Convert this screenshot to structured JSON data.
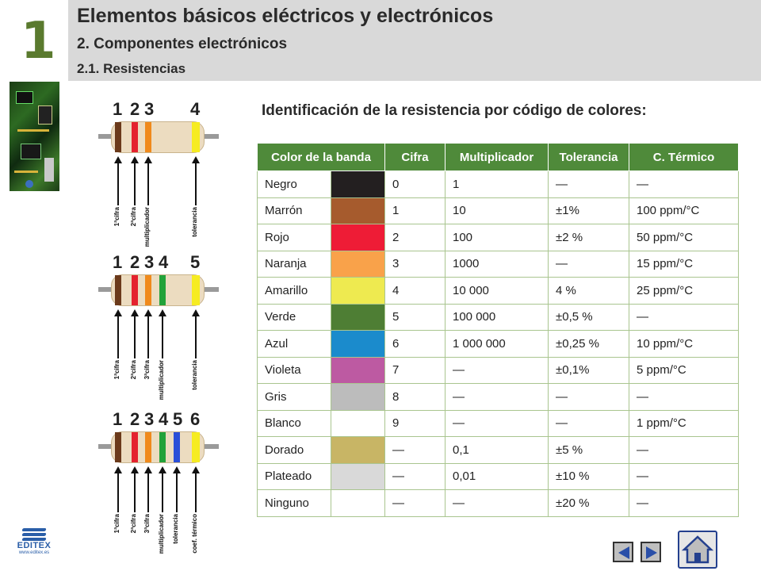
{
  "chapter_number": "1",
  "header": {
    "title": "Elementos básicos eléctricos y electrónicos",
    "section": "2. Componentes electrónicos",
    "subsection": "2.1. Resistencias"
  },
  "table_heading": "Identificación de la resistencia por código de colores:",
  "resistor_figures": [
    {
      "numbers": [
        "1",
        "2",
        "3",
        "4"
      ],
      "labels": [
        "1ªcifra",
        "2ªcifra",
        "multiplicador",
        "tolerancia"
      ]
    },
    {
      "numbers": [
        "1",
        "2",
        "3",
        "4",
        "5"
      ],
      "labels": [
        "1ªcifra",
        "2ªcifra",
        "3ªcifra",
        "multiplicador",
        "tolerancia"
      ]
    },
    {
      "numbers": [
        "1",
        "2",
        "3",
        "4",
        "5",
        "6"
      ],
      "labels": [
        "1ªcifra",
        "2ªcifra",
        "3ªcifra",
        "multiplicador",
        "tolerancia",
        "coef. térmico"
      ]
    }
  ],
  "table": {
    "headers": [
      "Color de la banda",
      "Cifra",
      "Multiplicador",
      "Tolerancia",
      "C. Térmico"
    ],
    "rows": [
      {
        "name": "Negro",
        "color": "#231f20",
        "digit": "0",
        "mult": "1",
        "tol": "—",
        "temp": "—"
      },
      {
        "name": "Marrón",
        "color": "#a65b2d",
        "digit": "1",
        "mult": "10",
        "tol": "±1%",
        "temp": "100 ppm/°C"
      },
      {
        "name": "Rojo",
        "color": "#ee1c36",
        "digit": "2",
        "mult": "100",
        "tol": "±2 %",
        "temp": "50 ppm/°C"
      },
      {
        "name": "Naranja",
        "color": "#f9a24a",
        "digit": "3",
        "mult": "1000",
        "tol": "—",
        "temp": "15 ppm/°C"
      },
      {
        "name": "Amarillo",
        "color": "#eeea50",
        "digit": "4",
        "mult": "10 000",
        "tol": "4 %",
        "temp": "25 ppm/°C"
      },
      {
        "name": "Verde",
        "color": "#4e7e34",
        "digit": "5",
        "mult": "100 000",
        "tol": "±0,5 %",
        "temp": "—"
      },
      {
        "name": "Azul",
        "color": "#1b8bcc",
        "digit": "6",
        "mult": "1 000 000",
        "tol": "±0,25 %",
        "temp": "10 ppm/°C"
      },
      {
        "name": "Violeta",
        "color": "#bd5aa2",
        "digit": "7",
        "mult": "—",
        "tol": "±0,1%",
        "temp": "5 ppm/°C"
      },
      {
        "name": "Gris",
        "color": "#bcbcbc",
        "digit": "8",
        "mult": "—",
        "tol": "—",
        "temp": "—"
      },
      {
        "name": "Blanco",
        "color": "#ffffff",
        "digit": "9",
        "mult": "—",
        "tol": "—",
        "temp": "1 ppm/°C"
      },
      {
        "name": "Dorado",
        "color": "#c8b565",
        "digit": "—",
        "mult": "0,1",
        "tol": "±5 %",
        "temp": "—"
      },
      {
        "name": "Plateado",
        "color": "#d9d9d9",
        "digit": "—",
        "mult": "0,01",
        "tol": "±10 %",
        "temp": "—"
      },
      {
        "name": "Ninguno",
        "color": "#ffffff",
        "digit": "—",
        "mult": "—",
        "tol": "±20 %",
        "temp": "—"
      }
    ]
  },
  "logo": {
    "name": "EDITEX",
    "url": "www.editex.es"
  },
  "nav": {
    "prev": "previous-slide",
    "next": "next-slide",
    "home": "home"
  }
}
